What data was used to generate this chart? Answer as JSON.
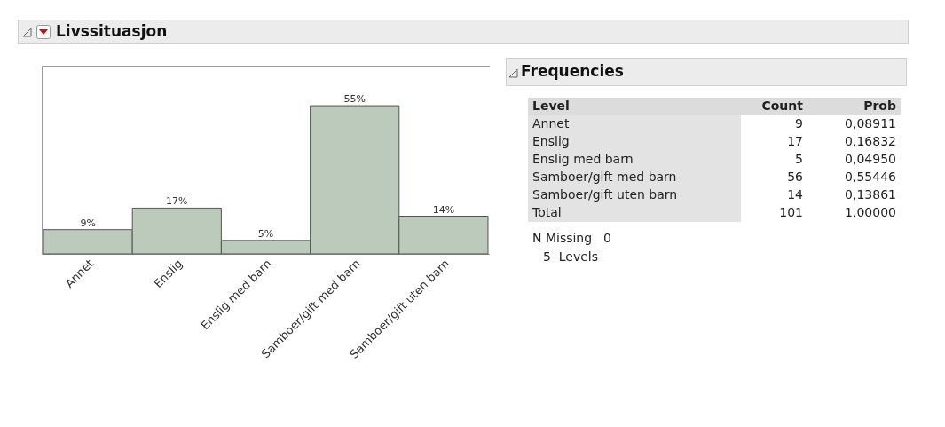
{
  "chart_data": [
    {
      "type": "bar",
      "title": "Livssituasjon",
      "categories": [
        "Annet",
        "Enslig",
        "Enslig med barn",
        "Samboer/gift med barn",
        "Samboer/gift uten barn"
      ],
      "values": [
        9,
        17,
        5,
        55,
        14
      ],
      "value_labels": [
        "9%",
        "17%",
        "5%",
        "55%",
        "14%"
      ],
      "color": "#bccabb"
    },
    {
      "type": "other",
      "title": "Frequencies",
      "annotations": [
        "Level",
        "Count",
        "Prob",
        "Annet",
        "9",
        "0,08911",
        "Enslig",
        "17",
        "0,16832",
        "Enslig med barn",
        "5",
        "0,04950",
        "Samboer/gift med barn",
        "56",
        "0,55446",
        "Samboer/gift uten barn",
        "14",
        "0,13861",
        "Total",
        "101",
        "1,00000",
        "N Missing",
        "0",
        "5  Levels"
      ]
    }
  ]
}
